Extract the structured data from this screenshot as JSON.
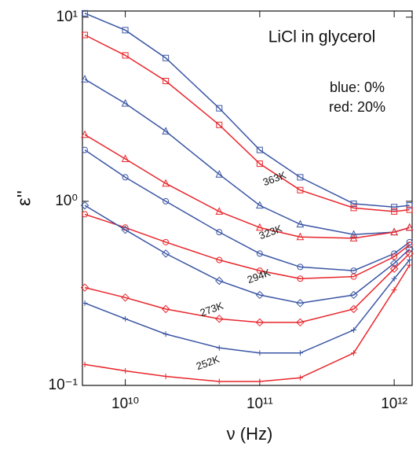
{
  "chart_data": {
    "type": "scatter",
    "title": "LiCl in glycerol",
    "notes": [
      {
        "text": "blue: 0%",
        "color": "#3a55a4"
      },
      {
        "text": "red: 20%",
        "color": "#e8262b"
      }
    ],
    "xlabel": "ν (Hz)",
    "ylabel": "ε''",
    "log_x": true,
    "log_y": true,
    "xlim": [
      4800000000,
      1360000000000
    ],
    "ylim": [
      0.1,
      10.8
    ],
    "xticks": [
      {
        "value": 10000000000,
        "label": "10¹⁰"
      },
      {
        "value": 100000000000,
        "label": "10¹¹"
      },
      {
        "value": 1000000000000,
        "label": "10¹²"
      }
    ],
    "yticks": [
      {
        "value": 0.1,
        "label": "10⁻¹"
      },
      {
        "value": 1,
        "label": "10⁰"
      },
      {
        "value": 10,
        "label": "10¹"
      }
    ],
    "x": [
      5000000000,
      10000000000,
      20000000000,
      50000000000,
      100000000000,
      200000000000,
      500000000000,
      1000000000000,
      1300000000000
    ],
    "annotations": [
      "363K",
      "323K",
      "294K",
      "273K",
      "252K"
    ],
    "series": [
      {
        "color": "#3a55a4",
        "marker": "square",
        "values": [
          10.5,
          8.5,
          6,
          3.2,
          1.9,
          1.35,
          0.97,
          0.93,
          0.95
        ]
      },
      {
        "color": "#e8262b",
        "marker": "square",
        "values": [
          8,
          6.2,
          4.5,
          2.6,
          1.6,
          1.15,
          0.92,
          0.88,
          0.9
        ]
      },
      {
        "color": "#3a55a4",
        "marker": "triangle",
        "values": [
          4.6,
          3.4,
          2.4,
          1.4,
          0.95,
          0.75,
          0.66,
          0.68,
          0.72
        ]
      },
      {
        "color": "#e8262b",
        "marker": "triangle",
        "values": [
          2.3,
          1.7,
          1.25,
          0.88,
          0.72,
          0.64,
          0.63,
          0.68,
          0.72
        ]
      },
      {
        "color": "#3a55a4",
        "marker": "circle",
        "values": [
          1.9,
          1.35,
          1.0,
          0.68,
          0.52,
          0.44,
          0.42,
          0.52,
          0.6
        ]
      },
      {
        "color": "#e8262b",
        "marker": "circle",
        "values": [
          0.85,
          0.72,
          0.6,
          0.48,
          0.42,
          0.38,
          0.39,
          0.5,
          0.58
        ]
      },
      {
        "color": "#3a55a4",
        "marker": "diamond",
        "values": [
          0.95,
          0.7,
          0.52,
          0.37,
          0.31,
          0.28,
          0.31,
          0.46,
          0.55
        ]
      },
      {
        "color": "#e8262b",
        "marker": "diamond",
        "values": [
          0.34,
          0.3,
          0.26,
          0.23,
          0.22,
          0.22,
          0.26,
          0.43,
          0.52
        ]
      },
      {
        "color": "#3a55a4",
        "marker": "plus",
        "values": [
          0.28,
          0.23,
          0.19,
          0.16,
          0.15,
          0.15,
          0.2,
          0.38,
          0.48
        ]
      },
      {
        "color": "#e8262b",
        "marker": "plus",
        "values": [
          0.13,
          0.12,
          0.112,
          0.105,
          0.105,
          0.11,
          0.15,
          0.33,
          0.45
        ]
      }
    ]
  }
}
